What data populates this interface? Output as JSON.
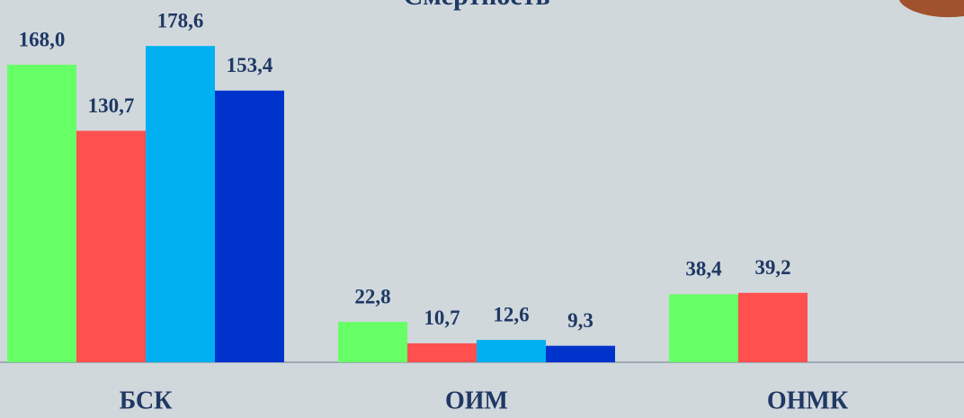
{
  "chart_data": {
    "type": "bar",
    "title": "Смертность",
    "categories": [
      "БСК",
      "ОИМ",
      "ОНМК"
    ],
    "series": [
      {
        "color": "#66ff66",
        "values": [
          168.0,
          22.8,
          38.4
        ],
        "value_labels": [
          "168,0",
          "22,8",
          "38,4"
        ]
      },
      {
        "color": "#ff5050",
        "values": [
          130.7,
          10.7,
          39.2
        ],
        "value_labels": [
          "130,7",
          "10,7",
          "39,2"
        ]
      },
      {
        "color": "#00b0f0",
        "values": [
          178.6,
          12.6,
          null
        ],
        "value_labels": [
          "178,6",
          "12,6",
          null
        ]
      },
      {
        "color": "#0033cc",
        "values": [
          153.4,
          9.3,
          null
        ],
        "value_labels": [
          "153,4",
          "9,3",
          null
        ]
      }
    ],
    "ylim": [
      0,
      200
    ]
  }
}
